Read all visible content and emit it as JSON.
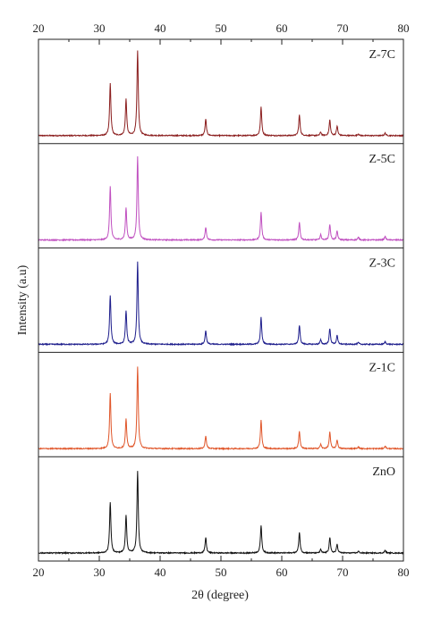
{
  "chart_data": {
    "type": "line",
    "xlabel": "2θ (degree)",
    "ylabel": "Intensity (a.u)",
    "xlim": [
      20,
      80
    ],
    "x_ticks": [
      20,
      30,
      40,
      50,
      60,
      70,
      80
    ],
    "grid": false,
    "stacked_panels": true,
    "peaks_2theta": [
      31.8,
      34.4,
      36.3,
      47.5,
      56.6,
      62.9,
      66.4,
      67.9,
      69.1,
      72.6,
      77.0
    ],
    "series": [
      {
        "name": "Z-7C",
        "color": "#8b1e1e",
        "peak_intensities": [
          0.6,
          0.42,
          0.98,
          0.19,
          0.33,
          0.24,
          0.04,
          0.18,
          0.11,
          0.02,
          0.03
        ]
      },
      {
        "name": "Z-5C",
        "color": "#c050c0",
        "peak_intensities": [
          0.62,
          0.37,
          0.96,
          0.15,
          0.32,
          0.2,
          0.06,
          0.18,
          0.1,
          0.03,
          0.04
        ]
      },
      {
        "name": "Z-3C",
        "color": "#1e1e8c",
        "peak_intensities": [
          0.57,
          0.39,
          0.95,
          0.16,
          0.31,
          0.22,
          0.05,
          0.18,
          0.1,
          0.02,
          0.03
        ]
      },
      {
        "name": "Z-1C",
        "color": "#e0562a",
        "peak_intensities": [
          0.64,
          0.34,
          0.95,
          0.15,
          0.33,
          0.2,
          0.05,
          0.19,
          0.1,
          0.02,
          0.03
        ]
      },
      {
        "name": "ZnO",
        "color": "#111111",
        "peak_intensities": [
          0.59,
          0.44,
          0.95,
          0.18,
          0.32,
          0.24,
          0.04,
          0.18,
          0.1,
          0.02,
          0.03
        ]
      }
    ]
  }
}
